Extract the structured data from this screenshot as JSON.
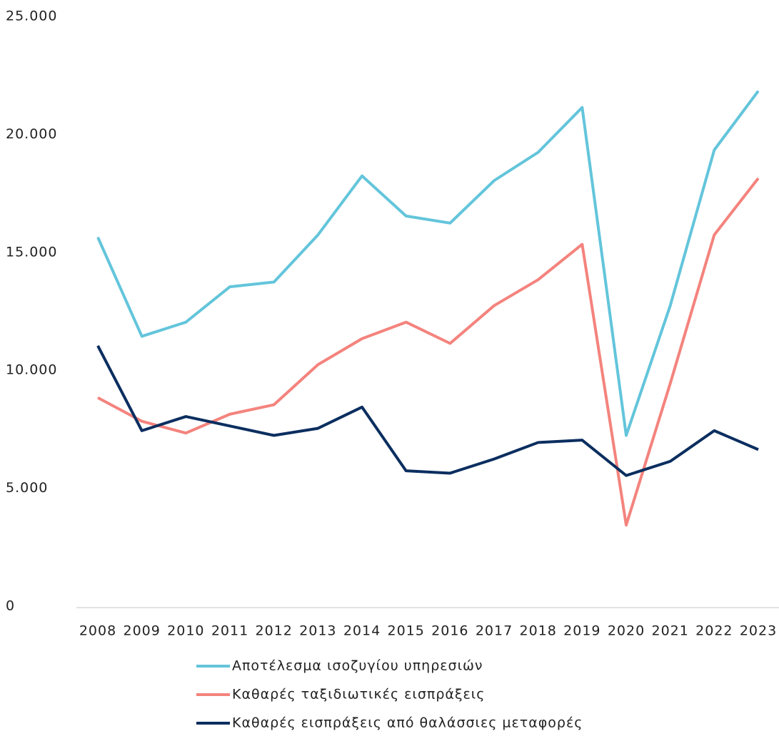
{
  "chart_data": {
    "type": "line",
    "categories": [
      "2008",
      "2009",
      "2010",
      "2011",
      "2012",
      "2013",
      "2014",
      "2015",
      "2016",
      "2017",
      "2018",
      "2019",
      "2020",
      "2021",
      "2022",
      "2023"
    ],
    "series": [
      {
        "name": "Αποτέλεσμα ισοζυγίου υπηρεσιών",
        "color": "#63c5db",
        "values": [
          15700,
          11500,
          12100,
          13600,
          13800,
          15800,
          18300,
          16600,
          16300,
          18100,
          19300,
          21200,
          7300,
          12800,
          19400,
          21900
        ]
      },
      {
        "name": "Καθαρές ταξιδιωτικές εισπράξεις",
        "color": "#f4837d",
        "values": [
          8900,
          7900,
          7400,
          8200,
          8600,
          10300,
          11400,
          12100,
          11200,
          12800,
          13900,
          15400,
          3500,
          9500,
          15800,
          18200
        ]
      },
      {
        "name": "Καθαρές εισπράξεις από θαλάσσιες μεταφορές",
        "color": "#0b2e5f",
        "values": [
          11100,
          7500,
          8100,
          7700,
          7300,
          7600,
          8500,
          5800,
          5700,
          6300,
          7000,
          7100,
          5600,
          6200,
          7500,
          6700
        ]
      }
    ],
    "ylim": [
      0,
      25000
    ],
    "yticks": [
      0,
      {
        "value": 5000,
        "label": "5.000"
      },
      {
        "value": 10000,
        "label": "10.000"
      },
      {
        "value": 15000,
        "label": "15.000"
      },
      {
        "value": 20000,
        "label": "20.000"
      },
      {
        "value": 25000,
        "label": "25.000"
      }
    ],
    "grid": false,
    "legend": "bottom"
  }
}
